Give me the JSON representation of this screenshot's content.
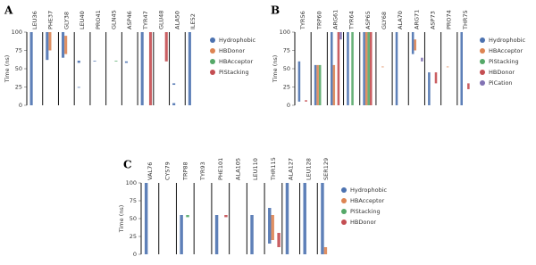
{
  "chart_data": [
    {
      "type": "timeline",
      "panel": "A",
      "y_label": "Time (ns)",
      "ylim": [
        0,
        100
      ],
      "yticks": [
        0,
        25,
        50,
        75,
        100
      ],
      "categories": [
        "LEU36",
        "PHE37",
        "GLY38",
        "LEU40",
        "PRO41",
        "GLN45",
        "ASP46",
        "TYR47",
        "GLU48",
        "ALA50",
        "ILE52"
      ],
      "series": [
        {
          "name": "Hydrophobic",
          "color": "#4c72b0",
          "values": [
            [
              [
                0,
                100
              ]
            ],
            [
              [
                62,
                100
              ]
            ],
            [
              [
                65,
                100
              ]
            ],
            [
              [
                58,
                61
              ],
              [
                24,
                25
              ]
            ],
            [
              [
                60,
                61
              ]
            ],
            [],
            [
              [
                58,
                60
              ]
            ],
            [
              [
                0,
                100
              ]
            ],
            [],
            [
              [
                0,
                3
              ],
              [
                28,
                30
              ]
            ],
            [
              [
                0,
                100
              ]
            ]
          ]
        },
        {
          "name": "HBDonor",
          "color": "#dd8452",
          "values": [
            [],
            [
              [
                75,
                100
              ]
            ],
            [
              [
                70,
                95
              ]
            ],
            [],
            [],
            [],
            [],
            [],
            [],
            [],
            []
          ]
        },
        {
          "name": "HBAcceptor",
          "color": "#55a868",
          "values": [
            [],
            [],
            [],
            [],
            [],
            [
              [
                60,
                61
              ]
            ],
            [],
            [],
            [],
            [],
            []
          ]
        },
        {
          "name": "PiStacking",
          "color": "#c44e52",
          "values": [
            [],
            [],
            [],
            [],
            [],
            [],
            [],
            [
              [
                0,
                100
              ]
            ],
            [
              [
                60,
                100
              ]
            ],
            [],
            []
          ]
        }
      ]
    },
    {
      "type": "timeline",
      "panel": "B",
      "y_label": "Time (ns)",
      "ylim": [
        0,
        100
      ],
      "yticks": [
        0,
        25,
        50,
        75,
        100
      ],
      "categories": [
        "TYR56",
        "TRP60",
        "ARG61",
        "TYR64",
        "ASP65",
        "GLY68",
        "ALA70",
        "ARG71",
        "ASP73",
        "PRO74",
        "THR75"
      ],
      "series": [
        {
          "name": "Hydrophobic",
          "color": "#4c72b0",
          "values": [
            [
              [
                5,
                60
              ]
            ],
            [
              [
                0,
                55
              ]
            ],
            [
              [
                0,
                100
              ]
            ],
            [
              [
                0,
                100
              ]
            ],
            [
              [
                0,
                100
              ]
            ],
            [],
            [
              [
                0,
                100
              ]
            ],
            [
              [
                70,
                100
              ]
            ],
            [
              [
                0,
                45
              ]
            ],
            [],
            [
              [
                0,
                100
              ]
            ]
          ]
        },
        {
          "name": "HBAcceptor",
          "color": "#dd8452",
          "values": [
            [],
            [
              [
                0,
                55
              ]
            ],
            [
              [
                0,
                55
              ]
            ],
            [],
            [
              [
                0,
                100
              ]
            ],
            [
              [
                52,
                53
              ]
            ],
            [],
            [
              [
                75,
                90
              ]
            ],
            [],
            [
              [
                52,
                53
              ]
            ],
            []
          ]
        },
        {
          "name": "PiStacking",
          "color": "#55a868",
          "values": [
            [],
            [
              [
                0,
                55
              ]
            ],
            [],
            [
              [
                0,
                100
              ]
            ],
            [
              [
                0,
                100
              ]
            ],
            [],
            [],
            [],
            [],
            [],
            []
          ]
        },
        {
          "name": "HBDonor",
          "color": "#c44e52",
          "values": [
            [
              [
                5,
                7
              ]
            ],
            [],
            [
              [
                0,
                100
              ]
            ],
            [],
            [
              [
                0,
                100
              ]
            ],
            [],
            [],
            [],
            [
              [
                30,
                45
              ]
            ],
            [],
            [
              [
                22,
                30
              ]
            ]
          ]
        },
        {
          "name": "PiCation",
          "color": "#8172b3",
          "values": [
            [],
            [],
            [
              [
                90,
                100
              ]
            ],
            [],
            [],
            [],
            [],
            [
              [
                60,
                65
              ]
            ],
            [],
            [],
            []
          ]
        }
      ]
    },
    {
      "type": "timeline",
      "panel": "C",
      "y_label": "Time (ns)",
      "ylim": [
        0,
        100
      ],
      "yticks": [
        0,
        25,
        50,
        75,
        100
      ],
      "categories": [
        "VAL76",
        "CYS79",
        "TRP88",
        "TYR93",
        "PHE101",
        "ALA105",
        "LEU110",
        "THR115",
        "ALA127",
        "LEU128",
        "SER129"
      ],
      "series": [
        {
          "name": "Hydrophobic",
          "color": "#4c72b0",
          "values": [
            [
              [
                0,
                100
              ]
            ],
            [],
            [
              [
                0,
                55
              ]
            ],
            [],
            [
              [
                0,
                55
              ]
            ],
            [],
            [
              [
                0,
                55
              ]
            ],
            [
              [
                15,
                65
              ]
            ],
            [
              [
                0,
                100
              ]
            ],
            [
              [
                0,
                100
              ]
            ],
            [
              [
                0,
                100
              ]
            ]
          ]
        },
        {
          "name": "HBAcceptor",
          "color": "#dd8452",
          "values": [
            [],
            [],
            [],
            [],
            [],
            [],
            [],
            [
              [
                20,
                55
              ]
            ],
            [],
            [],
            [
              [
                0,
                10
              ]
            ]
          ]
        },
        {
          "name": "PiStacking",
          "color": "#55a868",
          "values": [
            [],
            [],
            [
              [
                52,
                55
              ]
            ],
            [],
            [],
            [],
            [],
            [],
            [],
            [],
            []
          ]
        },
        {
          "name": "HBDonor",
          "color": "#c44e52",
          "values": [
            [],
            [],
            [],
            [],
            [
              [
                52,
                55
              ]
            ],
            [],
            [],
            [
              [
                10,
                30
              ]
            ],
            [],
            [],
            []
          ]
        }
      ]
    }
  ]
}
